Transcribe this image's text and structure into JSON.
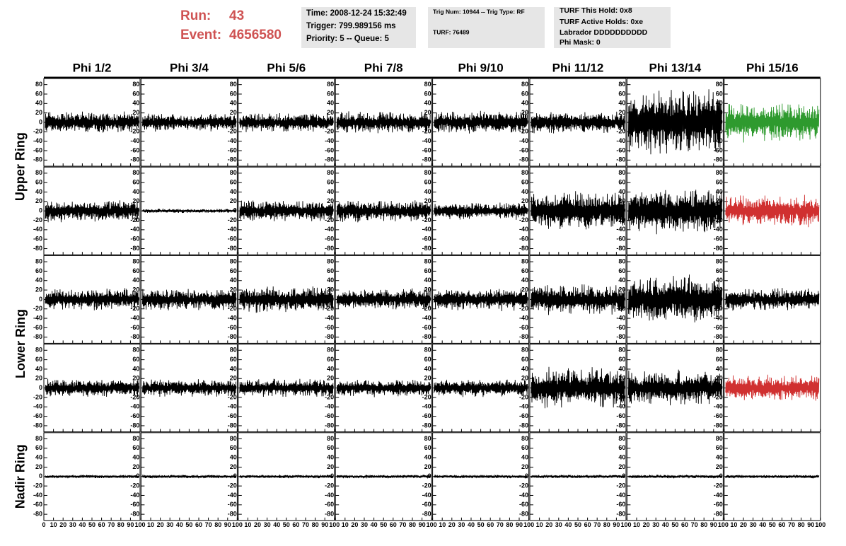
{
  "header": {
    "run_label": "Run:",
    "run": "43",
    "event_label": "Event:",
    "event": "4656580"
  },
  "info_boxes": [
    [
      "Time: 2008-12-24 15:32:49",
      "Trigger: 799.989156 ms",
      "Priority: 5 -- Queue: 5"
    ],
    [
      "Trig Num: 10944 -- Trig Type: RF",
      "TURF: 76489"
    ],
    [
      "TURF This Hold: 0x8",
      "TURF Active Holds: 0xe",
      "Labrador DDDDDDDDDD",
      "Phi Mask: 0"
    ]
  ],
  "chart_data": {
    "type": "waveform-grid",
    "columns": [
      "Phi 1/2",
      "Phi 3/4",
      "Phi 5/6",
      "Phi 7/8",
      "Phi 9/10",
      "Phi 11/12",
      "Phi 13/14",
      "Phi 15/16"
    ],
    "rings": [
      {
        "label": "Upper Ring",
        "rows": [
          0,
          1
        ]
      },
      {
        "label": "Lower Ring",
        "rows": [
          2,
          3
        ]
      },
      {
        "label": "Nadir Ring",
        "rows": [
          4
        ]
      }
    ],
    "ylim": [
      -93,
      93
    ],
    "yticks": [
      80,
      60,
      40,
      20,
      0,
      -20,
      -40,
      -60,
      -80
    ],
    "xlim": [
      0,
      100
    ],
    "xticks": [
      0,
      10,
      20,
      30,
      40,
      50,
      60,
      70,
      80,
      90,
      100
    ],
    "rows": [
      [
        {
          "peak": 25,
          "color": "#000000"
        },
        {
          "peak": 20,
          "color": "#000000"
        },
        {
          "peak": 22,
          "color": "#000000"
        },
        {
          "peak": 25,
          "color": "#000000"
        },
        {
          "peak": 25,
          "color": "#000000"
        },
        {
          "peak": 25,
          "color": "#000000"
        },
        {
          "peak": 75,
          "color": "#000000"
        },
        {
          "peak": 45,
          "color": "#2e9a2e"
        }
      ],
      [
        {
          "peak": 25,
          "color": "#000000"
        },
        {
          "peak": 5,
          "color": "#000000"
        },
        {
          "peak": 25,
          "color": "#000000"
        },
        {
          "peak": 25,
          "color": "#000000"
        },
        {
          "peak": 20,
          "color": "#000000"
        },
        {
          "peak": 45,
          "color": "#000000"
        },
        {
          "peak": 50,
          "color": "#000000"
        },
        {
          "peak": 35,
          "color": "#d03030"
        }
      ],
      [
        {
          "peak": 25,
          "color": "#000000"
        },
        {
          "peak": 25,
          "color": "#000000"
        },
        {
          "peak": 30,
          "color": "#000000"
        },
        {
          "peak": 25,
          "color": "#000000"
        },
        {
          "peak": 25,
          "color": "#000000"
        },
        {
          "peak": 35,
          "color": "#000000"
        },
        {
          "peak": 55,
          "color": "#000000"
        },
        {
          "peak": 25,
          "color": "#000000"
        }
      ],
      [
        {
          "peak": 20,
          "color": "#000000"
        },
        {
          "peak": 20,
          "color": "#000000"
        },
        {
          "peak": 20,
          "color": "#000000"
        },
        {
          "peak": 20,
          "color": "#000000"
        },
        {
          "peak": 20,
          "color": "#000000"
        },
        {
          "peak": 45,
          "color": "#000000"
        },
        {
          "peak": 40,
          "color": "#000000"
        },
        {
          "peak": 30,
          "color": "#d03030"
        }
      ],
      [
        {
          "peak": 4,
          "color": "#000000"
        },
        {
          "peak": 4,
          "color": "#000000"
        },
        {
          "peak": 4,
          "color": "#000000"
        },
        {
          "peak": 4,
          "color": "#000000"
        },
        {
          "peak": 4,
          "color": "#000000"
        },
        {
          "peak": 4,
          "color": "#000000"
        },
        {
          "peak": 4,
          "color": "#000000"
        },
        {
          "peak": 4,
          "color": "#000000"
        }
      ]
    ]
  }
}
